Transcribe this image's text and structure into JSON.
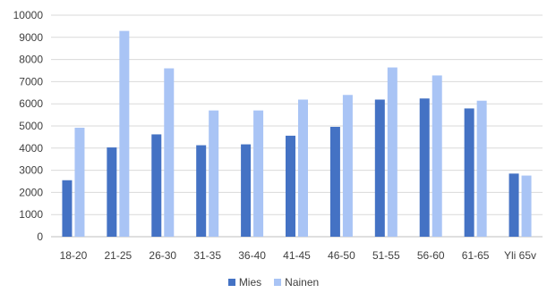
{
  "chart_data": {
    "type": "bar",
    "categories": [
      "18-20",
      "21-25",
      "26-30",
      "31-35",
      "36-40",
      "41-45",
      "46-50",
      "51-55",
      "56-60",
      "61-65",
      "Yli 65v"
    ],
    "series": [
      {
        "name": "Mies",
        "color": "#4472C4",
        "values": [
          2550,
          4030,
          4620,
          4130,
          4170,
          4560,
          4960,
          6190,
          6240,
          5790,
          2850
        ]
      },
      {
        "name": "Nainen",
        "color": "#A9C4F5",
        "values": [
          4920,
          9290,
          7600,
          5700,
          5700,
          6190,
          6400,
          7640,
          7280,
          6140,
          2760
        ]
      }
    ],
    "ylim": [
      0,
      10000
    ],
    "yticks": [
      0,
      1000,
      2000,
      3000,
      4000,
      5000,
      6000,
      7000,
      8000,
      9000,
      10000
    ],
    "grid": true,
    "legend": "bottom",
    "title": "",
    "xlabel": "",
    "ylabel": ""
  }
}
